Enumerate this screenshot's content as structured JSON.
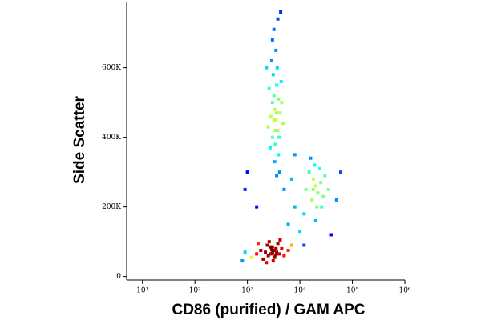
{
  "chart_data": {
    "type": "scatter",
    "x_label": "CD86 (purified) / GAM APC",
    "y_label": "Side Scatter",
    "xscale": "log",
    "xlim": [
      5,
      1000000
    ],
    "ylim": [
      -10000,
      790000
    ],
    "xticks": [
      {
        "value": 10,
        "label": "10¹"
      },
      {
        "value": 100,
        "label": "10²"
      },
      {
        "value": 1000,
        "label": "10³"
      },
      {
        "value": 10000,
        "label": "10⁴"
      },
      {
        "value": 100000,
        "label": "10⁵"
      },
      {
        "value": 1000000,
        "label": "10⁶"
      }
    ],
    "yticks": [
      0,
      {
        "value": 200000,
        "label": "200K"
      },
      {
        "value": 400000,
        "label": "400K"
      },
      {
        "value": 600000,
        "label": "600K"
      }
    ],
    "x": [
      3000,
      2800,
      3200,
      2500,
      3500,
      2200,
      4000,
      2700,
      3300,
      1800,
      4500,
      2000,
      3800,
      2600,
      3100,
      1500,
      5000,
      1200,
      6000,
      900,
      2400,
      3600,
      2900,
      3400,
      7000,
      800,
      1600,
      4200,
      2300,
      3000,
      3500,
      3300,
      3800,
      3000,
      4000,
      3200,
      3600,
      3400,
      2800,
      4200,
      3700,
      3100,
      2900,
      3900,
      3300,
      2600,
      4500,
      3500,
      3000,
      4100,
      3600,
      2500,
      4800,
      3200,
      3800,
      2700,
      4400,
      3400,
      3600,
      3200,
      3900,
      3000,
      5000,
      2300,
      4300,
      20000,
      18000,
      22000,
      15000,
      25000,
      17000,
      28000,
      19000,
      13000,
      30000,
      21000,
      16000,
      24000,
      35000,
      12000,
      20000,
      26000,
      18000,
      8000,
      6000,
      10000,
      1000,
      50000,
      8000,
      900,
      40000,
      7000,
      1500,
      60000,
      12000
    ],
    "y": [
      70000,
      65000,
      75000,
      60000,
      80000,
      70000,
      65000,
      85000,
      55000,
      75000,
      80000,
      50000,
      95000,
      100000,
      45000,
      65000,
      60000,
      55000,
      75000,
      70000,
      90000,
      70000,
      78000,
      62000,
      90000,
      45000,
      95000,
      105000,
      40000,
      85000,
      450000,
      480000,
      420000,
      500000,
      400000,
      520000,
      550000,
      380000,
      460000,
      470000,
      600000,
      580000,
      620000,
      350000,
      330000,
      540000,
      500000,
      650000,
      680000,
      300000,
      290000,
      430000,
      440000,
      710000,
      740000,
      370000,
      560000,
      420000,
      470000,
      450000,
      510000,
      400000,
      250000,
      600000,
      760000,
      260000,
      280000,
      240000,
      300000,
      270000,
      220000,
      230000,
      320000,
      250000,
      290000,
      200000,
      340000,
      310000,
      250000,
      180000,
      160000,
      200000,
      250000,
      200000,
      150000,
      130000,
      300000,
      220000,
      350000,
      250000,
      120000,
      280000,
      200000,
      300000,
      90000
    ]
  }
}
